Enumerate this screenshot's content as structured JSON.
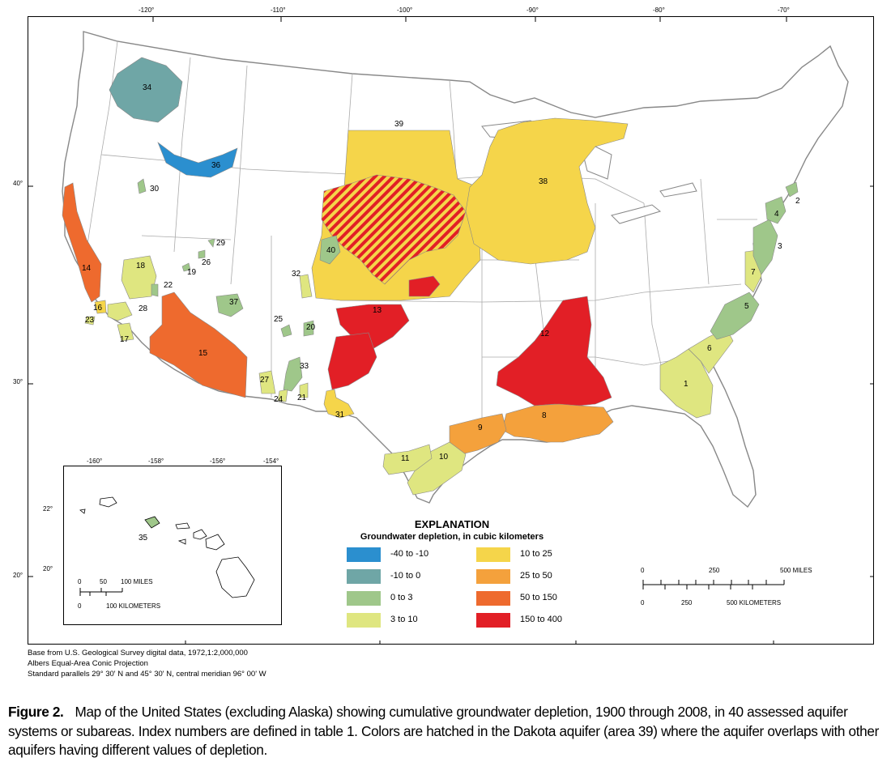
{
  "map": {
    "top_ticks": [
      "-120°",
      "-110°",
      "-100°",
      "-90°",
      "-80°",
      "-70°"
    ],
    "left_ticks": [
      "40°",
      "30°",
      "20°"
    ],
    "inset_top_ticks": [
      "-160°",
      "-158°",
      "-156°",
      "-154°"
    ],
    "inset_left_ticks": [
      "22°",
      "20°"
    ]
  },
  "regions": [
    {
      "id": "1",
      "class": "3 to 10"
    },
    {
      "id": "2",
      "class": "0 to 3"
    },
    {
      "id": "3",
      "class": "0 to 3"
    },
    {
      "id": "4",
      "class": "0 to 3"
    },
    {
      "id": "5",
      "class": "0 to 3"
    },
    {
      "id": "6",
      "class": "3 to 10"
    },
    {
      "id": "7",
      "class": "3 to 10"
    },
    {
      "id": "8",
      "class": "25 to 50"
    },
    {
      "id": "9",
      "class": "25 to 50"
    },
    {
      "id": "10",
      "class": "3 to 10"
    },
    {
      "id": "11",
      "class": "3 to 10"
    },
    {
      "id": "12",
      "class": "150 to 400"
    },
    {
      "id": "13",
      "class": "150 to 400"
    },
    {
      "id": "14",
      "class": "50 to 150"
    },
    {
      "id": "15",
      "class": "50 to 150"
    },
    {
      "id": "16",
      "class": "10 to 25"
    },
    {
      "id": "17",
      "class": "3 to 10"
    },
    {
      "id": "18",
      "class": "3 to 10"
    },
    {
      "id": "19",
      "class": "3 to 10"
    },
    {
      "id": "20",
      "class": "0 to 3"
    },
    {
      "id": "21",
      "class": "3 to 10"
    },
    {
      "id": "22",
      "class": "0 to 3"
    },
    {
      "id": "23",
      "class": "3 to 10"
    },
    {
      "id": "24",
      "class": "3 to 10"
    },
    {
      "id": "25",
      "class": "0 to 3"
    },
    {
      "id": "26",
      "class": "0 to 3"
    },
    {
      "id": "27",
      "class": "3 to 10"
    },
    {
      "id": "28",
      "class": "3 to 10"
    },
    {
      "id": "29",
      "class": "0 to 3"
    },
    {
      "id": "30",
      "class": "0 to 3"
    },
    {
      "id": "31",
      "class": "10 to 25"
    },
    {
      "id": "32",
      "class": "3 to 10"
    },
    {
      "id": "33",
      "class": "0 to 3"
    },
    {
      "id": "34",
      "class": "-10 to 0"
    },
    {
      "id": "35",
      "class": "0 to 3"
    },
    {
      "id": "36",
      "class": "-40 to -10"
    },
    {
      "id": "37",
      "class": "0 to 3"
    },
    {
      "id": "38",
      "class": "10 to 25"
    },
    {
      "id": "39",
      "class": "10 to 25"
    },
    {
      "id": "40",
      "class": "0 to 3"
    }
  ],
  "inset": {
    "scale_miles": [
      "0",
      "50",
      "100 MILES"
    ],
    "scale_km": [
      "0",
      "100 KILOMETERS"
    ]
  },
  "legend": {
    "title": "EXPLANATION",
    "subtitle": "Groundwater depletion, in cubic kilometers",
    "items": [
      {
        "label": "-40 to -10",
        "color": "#2b8fcf"
      },
      {
        "label": "-10 to 0",
        "color": "#6fa6a6"
      },
      {
        "label": "0 to 3",
        "color": "#9fc78a"
      },
      {
        "label": "3 to 10",
        "color": "#dfe680"
      },
      {
        "label": "10 to 25",
        "color": "#f5d54a"
      },
      {
        "label": "25 to 50",
        "color": "#f4a13c"
      },
      {
        "label": "50 to 150",
        "color": "#ee6a2e"
      },
      {
        "label": "150 to 400",
        "color": "#e21f26"
      }
    ]
  },
  "scale": {
    "miles": [
      "0",
      "250",
      "500 MILES"
    ],
    "km": [
      "0",
      "250",
      "500 KILOMETERS"
    ]
  },
  "credits": [
    "Base from U.S. Geological Survey digital data, 1972,1:2,000,000",
    "Albers Equal-Area Conic Projection",
    "Standard parallels 29° 30' N and 45° 30' N, central meridian 96° 00' W"
  ],
  "caption": {
    "label": "Figure 2.",
    "text": "Map of the United States (excluding Alaska) showing cumulative groundwater depletion, 1900 through 2008, in 40 assessed aquifer systems or subareas. Index numbers are defined in table 1. Colors are hatched in the Dakota aquifer (area 39) where the aquifer overlaps with other aquifers having different values of depletion."
  }
}
